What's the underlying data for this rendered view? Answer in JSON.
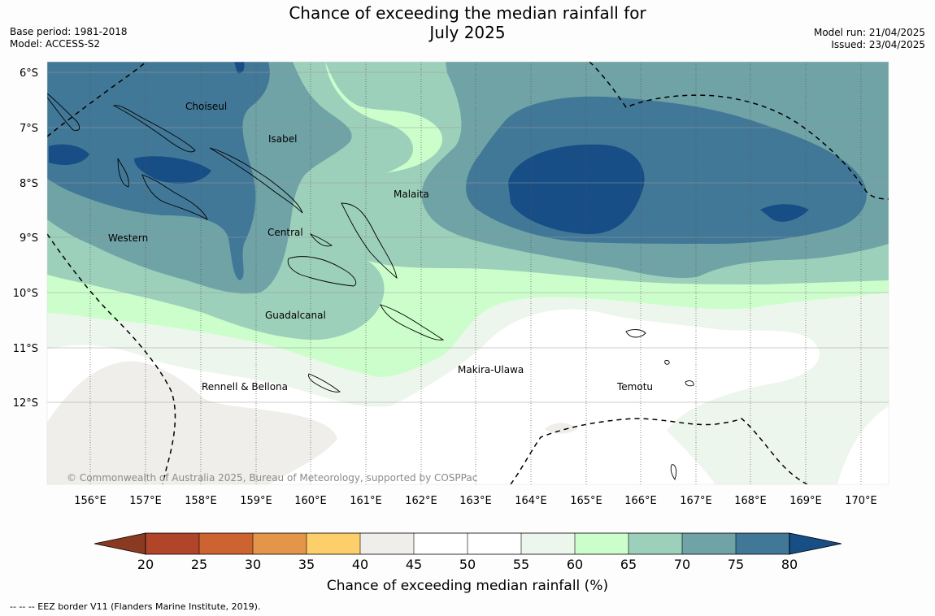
{
  "header": {
    "title_line1": "Chance of exceeding the median rainfall for",
    "title_line2": "July 2025",
    "base_period": "Base period: 1981-2018",
    "model": "Model: ACCESS-S2",
    "model_run": "Model run: 21/04/2025",
    "issued": "Issued: 23/04/2025"
  },
  "map": {
    "lat_labels": [
      "6°S",
      "7°S",
      "8°S",
      "9°S",
      "10°S",
      "11°S",
      "12°S"
    ],
    "lon_labels": [
      "156°E",
      "157°E",
      "158°E",
      "159°E",
      "160°E",
      "161°E",
      "162°E",
      "163°E",
      "164°E",
      "165°E",
      "166°E",
      "167°E",
      "168°E",
      "169°E",
      "170°E"
    ],
    "regions": {
      "choiseul": "Choiseul",
      "isabel": "Isabel",
      "malaita": "Malaita",
      "western": "Western",
      "central": "Central",
      "guadalcanal": "Guadalcanal",
      "makira": "Makira-Ulawa",
      "rennell": "Rennell & Bellona",
      "temotu": "Temotu"
    },
    "copyright": "© Commonwealth of Australia 2025, Bureau of Meteorology, supported by COSPPac"
  },
  "legend": {
    "ticks": [
      "20",
      "25",
      "30",
      "35",
      "40",
      "45",
      "50",
      "55",
      "60",
      "65",
      "70",
      "75",
      "80"
    ],
    "colors": [
      "#8b3a22",
      "#b0452a",
      "#cc6331",
      "#e3964a",
      "#fccf6a",
      "#f0eeea",
      "#ffffff",
      "#ffffff",
      "#edf6ec",
      "#ccfecc",
      "#9dd0bb",
      "#6fa3a6",
      "#427897",
      "#174e86"
    ],
    "title": "Chance of exceeding median rainfall (%)"
  },
  "footer": {
    "eez_note": "--  --  -- EEZ border V11 (Flanders Marine Institute, 2019)."
  }
}
